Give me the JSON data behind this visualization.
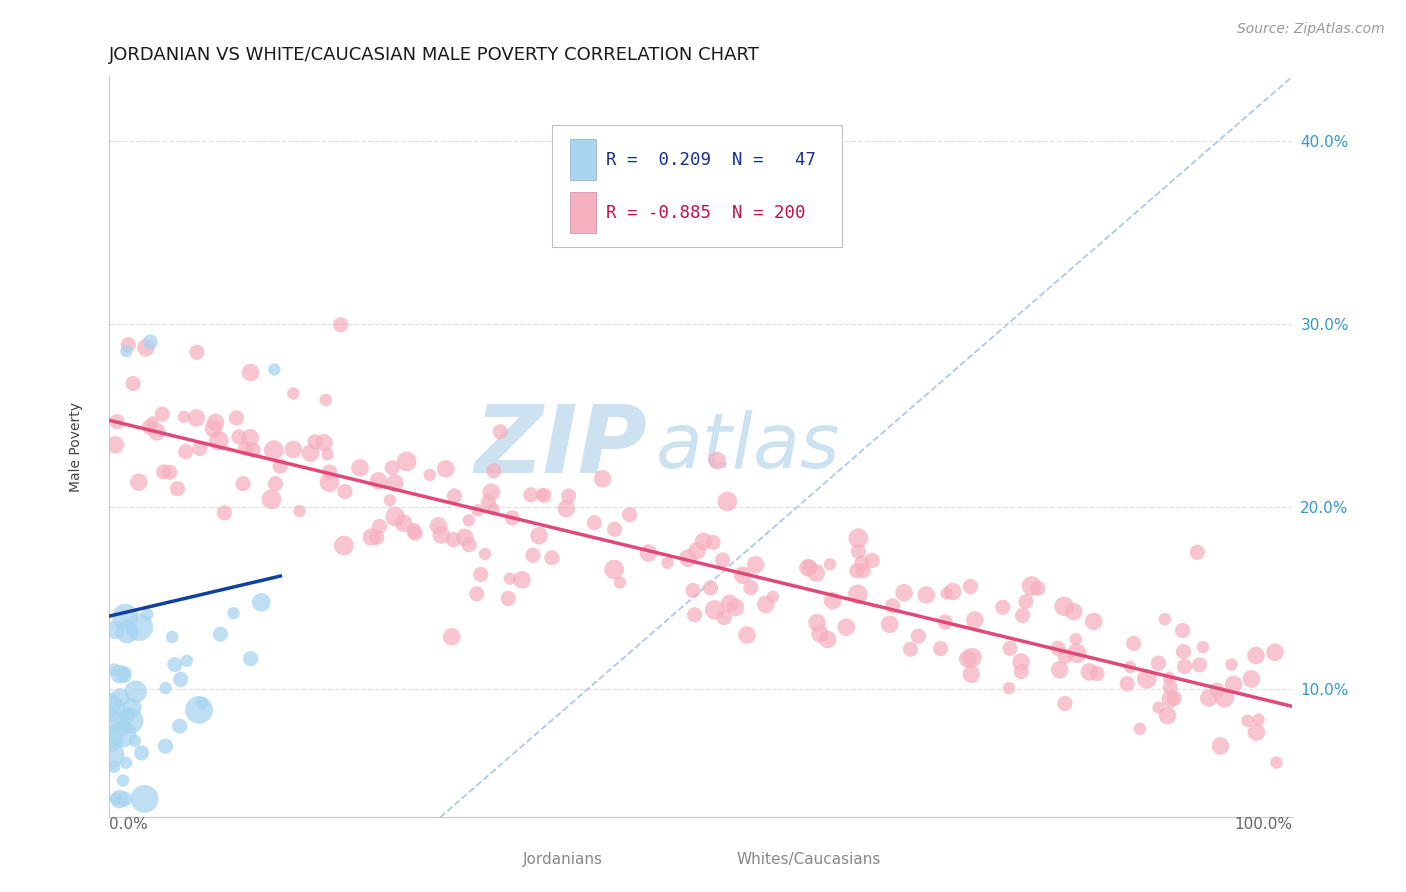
{
  "title": "JORDANIAN VS WHITE/CAUCASIAN MALE POVERTY CORRELATION CHART",
  "source_text": "Source: ZipAtlas.com",
  "ylabel": "Male Poverty",
  "yticks": [
    0.1,
    0.2,
    0.3,
    0.4
  ],
  "ytick_labels": [
    "10.0%",
    "20.0%",
    "30.0%",
    "40.0%"
  ],
  "xtick_left": "0.0%",
  "xtick_right": "100.0%",
  "xlim": [
    0.0,
    1.0
  ],
  "ylim": [
    0.03,
    0.435
  ],
  "jordanian_color": "#a8d4f0",
  "jordanian_edge_color": "#88b8d8",
  "caucasian_color": "#f5b0c0",
  "caucasian_edge_color": "#e090a8",
  "trend_blue_color": "#1040a0",
  "trend_pink_color": "#e04878",
  "diagonal_color": "#b0c8e8",
  "watermark_ZIP_color": "#c8dff0",
  "watermark_atlas_color": "#c8dff0",
  "background_color": "#ffffff",
  "grid_color": "#e0e0e0",
  "title_fontsize": 13,
  "axis_label_fontsize": 10,
  "tick_fontsize": 11,
  "source_fontsize": 10,
  "legend_text_color_blue": "#1a3090",
  "legend_text_color_pink": "#c01050",
  "bottom_legend_color": "#888888",
  "legend_box_color": "#f0f0f0"
}
